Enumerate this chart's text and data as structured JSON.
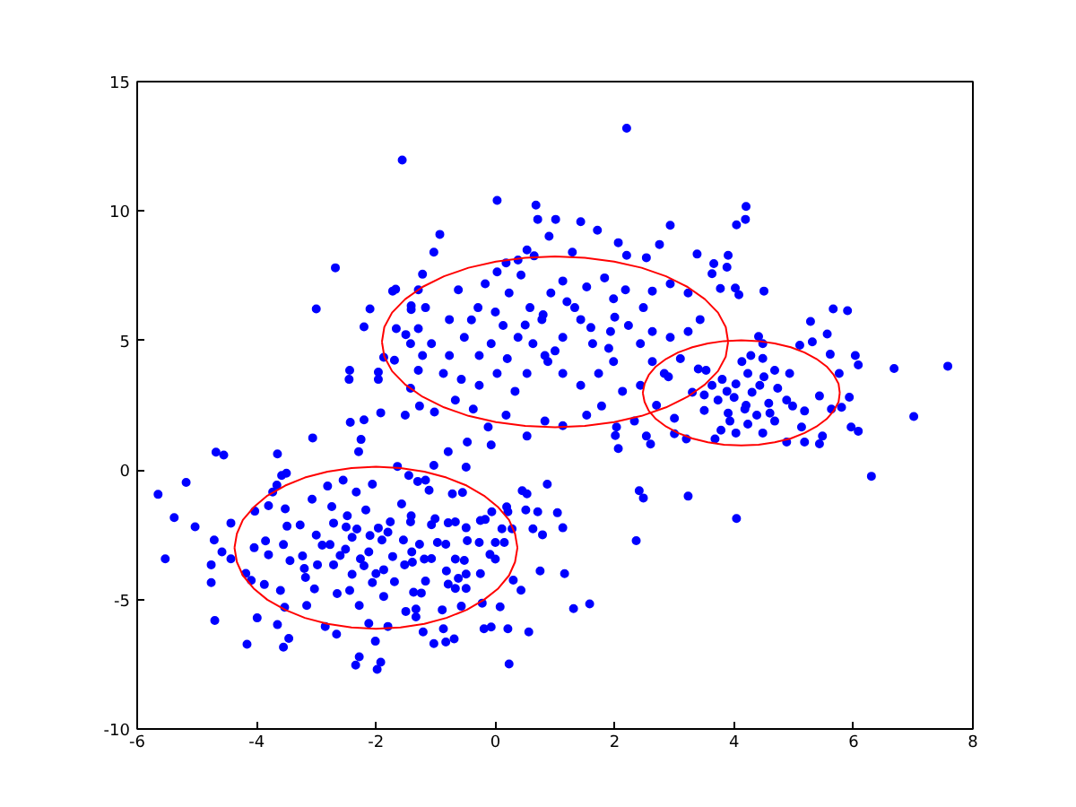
{
  "chart_data": {
    "type": "scatter",
    "xlim": [
      -6,
      8
    ],
    "ylim": [
      -10,
      15
    ],
    "xticks": [
      -6,
      -4,
      -2,
      0,
      2,
      4,
      6,
      8
    ],
    "yticks": [
      -10,
      -5,
      0,
      5,
      10,
      15
    ],
    "grid": false,
    "marker": "circle",
    "series": [
      {
        "color": "#0000ff",
        "x": [
          -5.65,
          -5.38,
          -5.18,
          -5.03,
          -5.53,
          -4.68,
          -4.55,
          -4.71,
          -4.58,
          -4.76,
          -4.76,
          -4.43,
          -4.43,
          -4.7,
          -4.18,
          -4.09,
          -4.16,
          -3.99,
          -4.03,
          -4.04,
          -3.85,
          -3.8,
          -3.87,
          -3.65,
          -3.66,
          -3.58,
          -3.5,
          -3.73,
          -3.8,
          -3.52,
          -3.49,
          -3.55,
          -3.44,
          -3.6,
          -3.53,
          -3.65,
          -3.55,
          -3.46,
          -3.27,
          -3.23,
          -3.18,
          -3.16,
          -3.06,
          -3.07,
          -3.0,
          -2.98,
          -3.03,
          -2.85,
          -2.81,
          -2.74,
          -2.71,
          -2.77,
          -2.71,
          -2.65,
          -2.66,
          -2.55,
          -2.48,
          -2.51,
          -2.4,
          -2.44,
          -2.29,
          -2.25,
          -2.33,
          -2.32,
          -2.26,
          -2.28,
          -2.34,
          -2.28,
          -2.17,
          -2.1,
          -2.12,
          -2.06,
          -2.12,
          -2.06,
          -2.01,
          -1.98,
          -1.92,
          -1.96,
          -1.9,
          -1.87,
          -1.87,
          -1.8,
          -1.76,
          -1.72,
          -1.69,
          -1.64,
          -1.57,
          -1.54,
          -1.52,
          -1.5,
          -1.45,
          -1.42,
          -1.4,
          -1.37,
          -2.4,
          -2.2,
          -2.6,
          -1.8,
          -2.0,
          -2.5,
          -3.2,
          -2.9,
          -1.3,
          -1.17,
          -1.11,
          -1.03,
          -0.79,
          -0.49,
          -0.72,
          -0.55,
          -1.41,
          -1.07,
          -1.01,
          -0.79,
          -0.67,
          -0.49,
          -0.25,
          -0.17,
          -0.06,
          0.11,
          0.21,
          0.28,
          0.19,
          0.45,
          0.53,
          0.87,
          0.51,
          0.71,
          1.04,
          1.13,
          0.63,
          0.79,
          0.75,
          1.16,
          0.43,
          0.3,
          0.08,
          -0.07,
          0.21,
          0.56,
          0.23,
          -0.19,
          -0.22,
          -0.09,
          0.0,
          0.15,
          0.0,
          -0.27,
          -0.47,
          -0.67,
          -0.52,
          -0.83,
          -0.97,
          -1.27,
          -1.39,
          -1.19,
          -1.07,
          -0.82,
          -0.49,
          -0.62,
          -0.79,
          -0.67,
          -0.49,
          -0.25,
          -0.57,
          -0.89,
          -1.33,
          -0.87,
          -1.03,
          -0.83,
          -0.69,
          -1.21,
          -1.33,
          -1.17,
          -1.24,
          1.31,
          1.58,
          2.01,
          2.06,
          2.41,
          2.48,
          3.23,
          2.36,
          0.03,
          0.68,
          0.71,
          1.01,
          1.43,
          1.71,
          0.9,
          -0.93,
          -1.03,
          2.93,
          2.06,
          2.75,
          1.29,
          0.65,
          0.38,
          0.18,
          0.53,
          2.2,
          2.53,
          3.38,
          -1.22,
          -1.29,
          -1.41,
          -1.17,
          -1.29,
          -1.42,
          -1.22,
          -1.29,
          -1.07,
          -0.77,
          -0.62,
          -0.29,
          -0.17,
          0.03,
          0.23,
          0.43,
          0.58,
          0.78,
          0.93,
          1.13,
          1.33,
          1.53,
          1.83,
          1.98,
          2.18,
          2.48,
          2.63,
          2.93,
          3.23,
          3.43,
          3.23,
          2.93,
          2.63,
          2.43,
          2.23,
          1.93,
          1.63,
          1.43,
          1.13,
          0.83,
          0.63,
          0.38,
          0.13,
          -0.07,
          -0.27,
          -0.52,
          -0.77,
          -0.87,
          -0.57,
          -0.27,
          0.03,
          0.33,
          0.53,
          0.88,
          1.13,
          1.43,
          1.73,
          1.98,
          2.13,
          2.43,
          2.63,
          2.83,
          -1.27,
          -1.02,
          -0.67,
          -0.37,
          -0.12,
          0.18,
          0.53,
          0.83,
          1.13,
          1.53,
          1.78,
          2.03,
          2.33,
          2.53,
          -0.07,
          -0.47,
          0.5,
          1.0,
          1.6,
          0.2,
          1.9,
          0.8,
          -0.4,
          1.2,
          2.0,
          0.0,
          4.2,
          4.19,
          4.04,
          3.9,
          3.88,
          3.63,
          4.02,
          4.08,
          4.5,
          5.66,
          5.9,
          5.28,
          5.56,
          5.31,
          4.41,
          4.48,
          5.1,
          5.61,
          6.03,
          6.08,
          6.68,
          7.58,
          7.01,
          5.76,
          5.93,
          5.8,
          6.08,
          5.96,
          5.63,
          5.43,
          5.48,
          5.13,
          5.18,
          4.98,
          4.88,
          4.73,
          4.93,
          4.68,
          4.48,
          4.28,
          4.13,
          4.23,
          4.03,
          3.88,
          3.73,
          3.63,
          3.53,
          4.43,
          4.58,
          4.38,
          4.18,
          3.93,
          3.78,
          3.68,
          4.23,
          4.68,
          4.48,
          4.03,
          4.88,
          5.18,
          5.43,
          4.0,
          4.3,
          3.8,
          4.5,
          4.2,
          3.5,
          4.6,
          3.9,
          2.7,
          3.0,
          3.2,
          2.9,
          3.1,
          3.4,
          3.5,
          2.6,
          3.0,
          3.3,
          -2.68,
          -3.0,
          -2.1,
          -2.2,
          -1.72,
          -1.67,
          -1.41,
          -1.66,
          -1.5,
          -1.87,
          -1.69,
          -2.44,
          -2.45,
          -1.96,
          -1.96,
          -1.42,
          -2.43,
          -2.2,
          -1.92,
          -1.51,
          6.3,
          4.04,
          2.2,
          -1.56,
          3.66,
          3.77
        ],
        "values": [
          -0.94,
          -1.84,
          -0.48,
          -2.19,
          -3.43,
          0.69,
          0.58,
          -2.7,
          -3.16,
          -3.66,
          -4.35,
          -2.05,
          -3.43,
          -5.81,
          -3.99,
          -4.26,
          -6.73,
          -5.71,
          -1.59,
          -3.0,
          -2.74,
          -3.27,
          -4.42,
          0.62,
          -0.58,
          -0.21,
          -0.12,
          -0.85,
          -1.38,
          -1.5,
          -2.17,
          -2.88,
          -3.5,
          -4.65,
          -5.3,
          -5.97,
          -6.84,
          -6.5,
          -2.12,
          -3.32,
          -4.15,
          -5.23,
          1.24,
          -1.13,
          -2.51,
          -3.66,
          -4.59,
          -6.04,
          -0.62,
          -1.41,
          -2.05,
          -2.88,
          -3.66,
          -4.77,
          -6.34,
          -0.39,
          -1.77,
          -3.06,
          -4.03,
          -4.65,
          0.71,
          1.18,
          -0.85,
          -2.28,
          -3.43,
          -5.23,
          -7.53,
          -7.21,
          -1.54,
          -2.53,
          -3.16,
          -4.35,
          -5.92,
          -0.55,
          -6.61,
          -7.7,
          -7.42,
          -2.24,
          -2.7,
          -3.85,
          -4.88,
          -6.04,
          -2.0,
          -3.34,
          -4.31,
          0.14,
          -1.31,
          -2.7,
          -3.66,
          -5.46,
          -0.21,
          -2.0,
          -3.16,
          -4.72,
          -2.6,
          -3.7,
          -3.3,
          -2.4,
          -4.0,
          -2.2,
          -3.8,
          -2.9,
          -0.44,
          -0.39,
          -0.78,
          0.18,
          0.71,
          0.11,
          -0.92,
          -0.87,
          -1.77,
          -2.11,
          -1.88,
          -2.04,
          -2.0,
          -2.23,
          -1.95,
          -1.91,
          -1.61,
          -2.27,
          -1.61,
          -2.27,
          -1.42,
          -0.8,
          -0.92,
          -0.55,
          -1.54,
          -1.61,
          -1.65,
          -2.23,
          -2.27,
          -2.5,
          -3.9,
          -4.0,
          -4.64,
          -4.25,
          -5.28,
          -6.06,
          -6.13,
          -6.25,
          -7.49,
          -6.13,
          -5.14,
          -3.26,
          -3.44,
          -2.8,
          -2.8,
          -2.8,
          -2.73,
          -3.44,
          -3.49,
          -2.87,
          -2.8,
          -2.87,
          -3.56,
          -3.44,
          -3.42,
          -3.9,
          -4.02,
          -4.18,
          -4.41,
          -4.57,
          -4.57,
          -4.0,
          -5.26,
          -5.4,
          -5.37,
          -6.13,
          -6.7,
          -6.64,
          -6.52,
          -6.25,
          -5.67,
          -4.29,
          -4.75,
          -5.35,
          -5.17,
          1.33,
          0.83,
          -0.8,
          -1.08,
          -1.01,
          -2.73,
          10.41,
          10.23,
          9.68,
          9.68,
          9.59,
          9.26,
          9.03,
          9.1,
          8.41,
          9.45,
          8.78,
          8.71,
          8.41,
          8.27,
          8.11,
          8.0,
          8.5,
          8.29,
          8.2,
          8.34,
          7.56,
          6.96,
          6.2,
          6.27,
          5.46,
          4.88,
          4.42,
          3.85,
          4.88,
          5.81,
          6.96,
          6.27,
          7.19,
          7.65,
          6.84,
          7.53,
          6.27,
          5.81,
          6.84,
          7.3,
          6.27,
          7.07,
          7.42,
          6.61,
          6.96,
          6.27,
          6.91,
          7.19,
          6.84,
          5.81,
          5.35,
          5.12,
          5.35,
          4.88,
          5.58,
          5.35,
          4.88,
          5.81,
          5.12,
          4.42,
          4.88,
          5.12,
          5.58,
          4.88,
          4.42,
          5.12,
          4.42,
          3.73,
          3.5,
          3.27,
          3.73,
          3.04,
          3.73,
          4.19,
          3.73,
          3.27,
          3.73,
          4.19,
          3.04,
          3.27,
          4.19,
          3.73,
          2.47,
          2.24,
          2.7,
          2.35,
          1.66,
          2.12,
          1.31,
          1.89,
          1.71,
          2.12,
          2.47,
          1.66,
          1.89,
          1.31,
          0.97,
          1.08,
          5.6,
          4.6,
          5.5,
          4.3,
          4.7,
          6.0,
          5.8,
          6.5,
          5.9,
          6.1,
          10.18,
          9.68,
          9.47,
          8.29,
          7.83,
          7.58,
          7.03,
          6.77,
          6.91,
          6.22,
          6.15,
          5.74,
          5.25,
          4.95,
          5.16,
          4.88,
          4.82,
          4.47,
          4.42,
          4.06,
          3.92,
          4.01,
          2.07,
          3.73,
          2.81,
          2.42,
          1.5,
          1.66,
          2.35,
          2.86,
          1.31,
          1.66,
          2.28,
          2.47,
          2.7,
          3.16,
          3.73,
          3.85,
          4.31,
          4.42,
          4.19,
          3.73,
          3.32,
          3.04,
          2.7,
          3.27,
          3.85,
          3.27,
          2.58,
          2.12,
          2.35,
          1.89,
          1.54,
          1.2,
          1.77,
          1.89,
          1.43,
          1.43,
          1.08,
          1.08,
          1.01,
          2.8,
          3.0,
          3.5,
          3.6,
          2.5,
          2.9,
          2.2,
          2.2,
          2.5,
          2.0,
          1.2,
          3.6,
          4.3,
          3.9,
          2.3,
          1.0,
          1.4,
          3.0,
          7.81,
          6.22,
          6.22,
          5.53,
          6.91,
          6.98,
          6.34,
          5.46,
          5.23,
          4.35,
          4.24,
          3.85,
          3.5,
          3.78,
          3.5,
          3.16,
          1.84,
          1.94,
          2.21,
          2.12,
          -0.24,
          -1.87,
          13.2,
          11.97,
          7.97,
          7.01
        ]
      },
      {
        "type": "line",
        "color": "#ff0000",
        "marker": "none",
        "x": [
          0.37,
          0.33,
          0.23,
          0.05,
          -0.19,
          -0.48,
          -0.82,
          -1.19,
          -1.59,
          -2.0,
          -2.41,
          -2.81,
          -3.19,
          -3.52,
          -3.82,
          -4.05,
          -4.23,
          -4.33,
          -4.37
        ],
        "values": [
          -3.0,
          -2.46,
          -1.93,
          -1.44,
          -0.99,
          -0.6,
          -0.29,
          -0.06,
          0.08,
          0.13,
          0.08,
          -0.06,
          -0.29,
          -0.6,
          -0.99,
          -1.44,
          -1.93,
          -2.46,
          -3.0
        ]
      },
      {
        "type": "line",
        "color": "#ff0000",
        "marker": "none",
        "x": [
          0.37,
          0.33,
          0.23,
          0.05,
          -0.19,
          -0.48,
          -0.82,
          -1.19,
          -1.59,
          -2.0,
          -2.41,
          -2.81,
          -3.19,
          -3.52,
          -3.82,
          -4.05,
          -4.23,
          -4.33,
          -4.37
        ],
        "values": [
          -3.0,
          -3.55,
          -4.07,
          -4.57,
          -5.01,
          -5.4,
          -5.71,
          -5.94,
          -6.08,
          -6.13,
          -6.08,
          -5.94,
          -5.71,
          -5.4,
          -5.01,
          -4.57,
          -4.07,
          -3.55,
          -3.0
        ]
      },
      {
        "type": "line",
        "color": "#ff0000",
        "marker": "none",
        "x": [
          3.9,
          3.86,
          3.73,
          3.51,
          3.22,
          2.86,
          2.45,
          1.99,
          1.5,
          1.0,
          0.5,
          0.01,
          -0.45,
          -0.86,
          -1.22,
          -1.51,
          -1.73,
          -1.86,
          -1.9
        ],
        "values": [
          4.95,
          5.52,
          6.08,
          6.6,
          7.07,
          7.48,
          7.81,
          8.05,
          8.2,
          8.25,
          8.2,
          8.05,
          7.81,
          7.48,
          7.07,
          6.6,
          6.08,
          5.52,
          4.95
        ]
      },
      {
        "type": "line",
        "color": "#ff0000",
        "marker": "none",
        "x": [
          3.9,
          3.86,
          3.73,
          3.51,
          3.22,
          2.86,
          2.45,
          1.99,
          1.5,
          1.0,
          0.5,
          0.01,
          -0.45,
          -0.86,
          -1.22,
          -1.51,
          -1.73,
          -1.86,
          -1.9
        ],
        "values": [
          4.95,
          4.38,
          3.82,
          3.3,
          2.83,
          2.42,
          2.09,
          1.85,
          1.7,
          1.65,
          1.7,
          1.85,
          2.09,
          2.42,
          2.83,
          3.3,
          3.82,
          4.38,
          4.95
        ]
      },
      {
        "type": "line",
        "color": "#ff0000",
        "marker": "none",
        "x": [
          5.77,
          5.75,
          5.67,
          5.55,
          5.38,
          5.18,
          4.95,
          4.68,
          4.41,
          4.12,
          3.83,
          3.56,
          3.3,
          3.06,
          2.86,
          2.69,
          2.57,
          2.5,
          2.47
        ],
        "values": [
          2.98,
          3.33,
          3.67,
          4.0,
          4.29,
          4.54,
          4.74,
          4.89,
          4.98,
          5.01,
          4.98,
          4.89,
          4.74,
          4.54,
          4.29,
          4.0,
          3.67,
          3.33,
          2.98
        ]
      },
      {
        "type": "line",
        "color": "#ff0000",
        "marker": "none",
        "x": [
          5.77,
          5.75,
          5.67,
          5.55,
          5.38,
          5.18,
          4.95,
          4.68,
          4.41,
          4.12,
          3.83,
          3.56,
          3.3,
          3.06,
          2.86,
          2.69,
          2.57,
          2.5,
          2.47
        ],
        "values": [
          2.98,
          2.63,
          2.29,
          1.97,
          1.68,
          1.43,
          1.22,
          1.07,
          0.98,
          0.95,
          0.98,
          1.07,
          1.22,
          1.43,
          1.68,
          1.97,
          2.29,
          2.63,
          2.98
        ]
      }
    ]
  }
}
